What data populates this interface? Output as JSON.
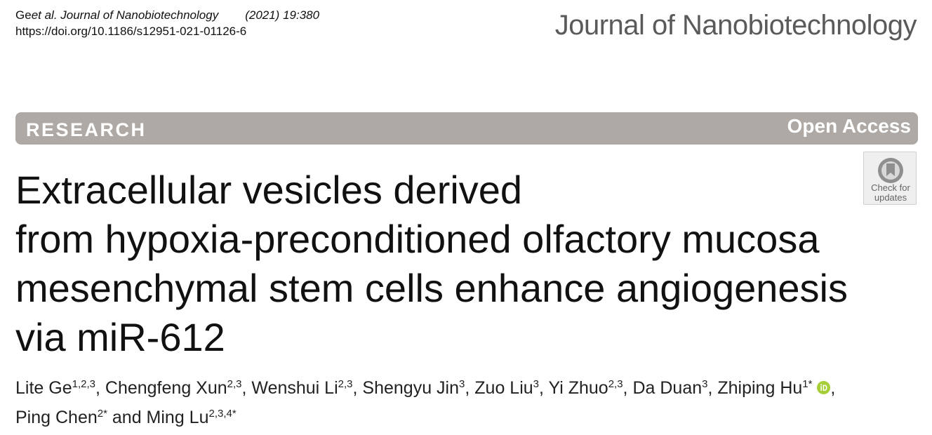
{
  "header": {
    "citation_authors": "Ge ",
    "citation_journal": "et al. Journal of Nanobiotechnology",
    "citation_volume": "(2021) 19:380",
    "doi": "https://doi.org/10.1186/s12951-021-01126-6",
    "masthead": "Journal of Nanobiotechnology"
  },
  "banner": {
    "type": "RESEARCH",
    "access": "Open Access",
    "color": "#aea9a5"
  },
  "check_updates": {
    "label_line1": "Check for",
    "label_line2": "updates"
  },
  "title": {
    "lines": [
      "Extracellular vesicles derived",
      "from hypoxia-preconditioned olfactory mucosa",
      "mesenchymal stem cells enhance angiogenesis",
      "via miR-612"
    ]
  },
  "authors": {
    "list": [
      {
        "name": "Lite Ge",
        "sup": "1,2,3",
        "sep": ", "
      },
      {
        "name": "Chengfeng Xun",
        "sup": "2,3",
        "sep": ", "
      },
      {
        "name": "Wenshui Li",
        "sup": "2,3",
        "sep": ", "
      },
      {
        "name": "Shengyu Jin",
        "sup": "3",
        "sep": ", "
      },
      {
        "name": "Zuo Liu",
        "sup": "3",
        "sep": ", "
      },
      {
        "name": "Yi Zhuo",
        "sup": "2,3",
        "sep": ", "
      },
      {
        "name": "Da Duan",
        "sup": "3",
        "sep": ", "
      },
      {
        "name": "Zhiping Hu",
        "sup": "1*",
        "sep": ","
      },
      {
        "name": "Ping Chen",
        "sup": "2*",
        "sep": " and "
      },
      {
        "name": "Ming Lu",
        "sup": "2,3,4*",
        "sep": ""
      }
    ],
    "orcid_color": "#a6ce39"
  }
}
